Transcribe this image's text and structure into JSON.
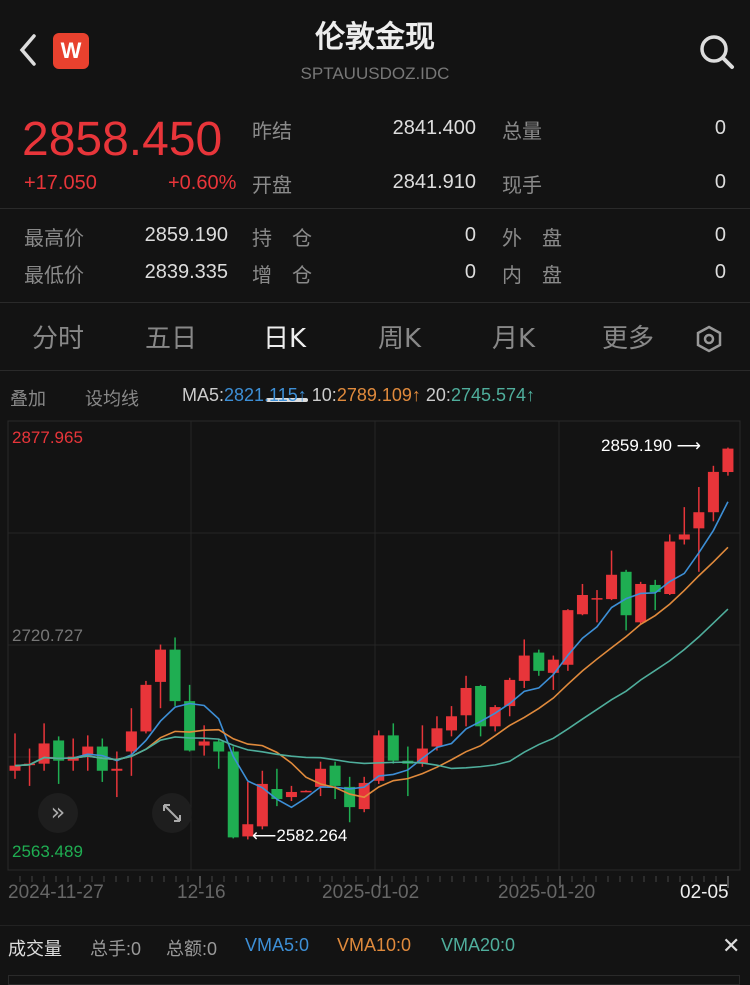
{
  "header": {
    "title": "伦敦金现",
    "symbol": "SPTAUUSDOZ.IDC",
    "logo_letter": "W",
    "back_icon": "chevron-left-icon",
    "search_icon": "search-icon"
  },
  "quote": {
    "price": "2858.450",
    "change": "+17.050",
    "change_pct": "+0.60%",
    "prev_close_label": "昨结",
    "prev_close": "2841.400",
    "open_label": "开盘",
    "open": "2841.910",
    "volume_label": "总量",
    "volume": "0",
    "last_hand_label": "现手",
    "last_hand": "0",
    "high_label": "最高价",
    "high": "2859.190",
    "low_label": "最低价",
    "low": "2839.335",
    "position_label": "持　仓",
    "position": "0",
    "add_position_label": "增　仓",
    "add_position": "0",
    "outer_label": "外　盘",
    "outer": "0",
    "inner_label": "内　盘",
    "inner": "0"
  },
  "tabs": [
    {
      "label": "分时"
    },
    {
      "label": "五日"
    },
    {
      "label": "日K",
      "active": true
    },
    {
      "label": "周K"
    },
    {
      "label": "月K"
    },
    {
      "label": "更多"
    }
  ],
  "toolbar": {
    "overlay": "叠加",
    "set_ma": "设均线",
    "ma5_label": "MA5:",
    "ma5": "2821.115↑",
    "ma10_label": "10:",
    "ma10": "2789.109↑",
    "ma20_label": "20:",
    "ma20": "2745.574↑"
  },
  "colors": {
    "up": "#e8353a",
    "down": "#1fae52",
    "ma5": "#3d8fd6",
    "ma10": "#e08a3c",
    "ma20": "#4fae9c"
  },
  "chart_data": {
    "type": "candlestick",
    "y_max_label": "2877.965",
    "y_mid_label": "2720.727",
    "y_min_label": "2563.489",
    "ylim": [
      2563.489,
      2877.965
    ],
    "high_annotation": "2859.190",
    "low_annotation": "2582.264",
    "x_tick_labels": [
      "2024-11-27",
      "12-16",
      "2025-01-02",
      "2025-01-20",
      "02-05"
    ],
    "ma_periods": [
      5,
      10,
      20
    ],
    "ohlc": [
      [
        2630.8,
        2657.2,
        2625.1,
        2634.4
      ],
      [
        2635.3,
        2646.5,
        2620.1,
        2635.8
      ],
      [
        2635.8,
        2664.3,
        2630.8,
        2650.1
      ],
      [
        2652.2,
        2655.1,
        2621.5,
        2637.9
      ],
      [
        2637.9,
        2653.6,
        2630.8,
        2640.8
      ],
      [
        2641.5,
        2655.8,
        2630.8,
        2647.9
      ],
      [
        2647.9,
        2653.6,
        2622.9,
        2630.8
      ],
      [
        2630.8,
        2644.4,
        2612.2,
        2632.2
      ],
      [
        2644.4,
        2675.0,
        2627.2,
        2658.6
      ],
      [
        2658.6,
        2694.3,
        2657.2,
        2691.5
      ],
      [
        2693.6,
        2720.0,
        2675.0,
        2716.4
      ],
      [
        2716.4,
        2725.0,
        2676.5,
        2680.0
      ],
      [
        2680.0,
        2691.5,
        2644.4,
        2645.1
      ],
      [
        2648.6,
        2662.9,
        2641.5,
        2651.5
      ],
      [
        2651.5,
        2653.6,
        2632.2,
        2644.4
      ],
      [
        2644.4,
        2647.9,
        2583.0,
        2583.7
      ],
      [
        2584.4,
        2622.9,
        2582.264,
        2593.0
      ],
      [
        2591.5,
        2630.8,
        2589.4,
        2621.5
      ],
      [
        2617.9,
        2632.2,
        2605.8,
        2610.8
      ],
      [
        2612.2,
        2620.1,
        2609.4,
        2615.8
      ],
      [
        2616.5,
        2617.0,
        2615.8,
        2616.6
      ],
      [
        2619.4,
        2637.2,
        2612.9,
        2632.2
      ],
      [
        2634.4,
        2637.2,
        2610.8,
        2620.1
      ],
      [
        2619.4,
        2626.5,
        2594.4,
        2605.1
      ],
      [
        2603.7,
        2626.5,
        2601.5,
        2622.2
      ],
      [
        2623.7,
        2659.3,
        2621.5,
        2655.8
      ],
      [
        2655.8,
        2664.3,
        2635.8,
        2637.9
      ],
      [
        2637.9,
        2647.9,
        2612.9,
        2635.8
      ],
      [
        2635.8,
        2662.9,
        2633.6,
        2646.5
      ],
      [
        2647.9,
        2669.3,
        2645.1,
        2660.8
      ],
      [
        2659.3,
        2676.5,
        2655.1,
        2669.3
      ],
      [
        2670.0,
        2697.9,
        2662.2,
        2689.3
      ],
      [
        2690.7,
        2691.5,
        2655.1,
        2662.2
      ],
      [
        2662.2,
        2677.2,
        2658.6,
        2675.8
      ],
      [
        2676.5,
        2696.5,
        2669.3,
        2695.0
      ],
      [
        2694.3,
        2723.6,
        2689.3,
        2712.2
      ],
      [
        2714.3,
        2716.4,
        2697.9,
        2701.4
      ],
      [
        2700.0,
        2712.2,
        2687.9,
        2709.3
      ],
      [
        2705.7,
        2745.0,
        2701.4,
        2744.3
      ],
      [
        2741.4,
        2762.8,
        2740.7,
        2755.0
      ],
      [
        2752.1,
        2758.5,
        2735.7,
        2752.8
      ],
      [
        2752.1,
        2786.4,
        2751.4,
        2769.3
      ],
      [
        2771.4,
        2772.8,
        2730.0,
        2740.7
      ],
      [
        2735.7,
        2764.3,
        2734.3,
        2762.8
      ],
      [
        2762.1,
        2765.7,
        2744.3,
        2757.1
      ],
      [
        2755.7,
        2797.8,
        2755.0,
        2792.8
      ],
      [
        2794.2,
        2817.1,
        2790.7,
        2797.8
      ],
      [
        2802.1,
        2831.3,
        2771.4,
        2813.5
      ],
      [
        2813.5,
        2846.3,
        2807.1,
        2842.0
      ],
      [
        2841.91,
        2859.19,
        2839.335,
        2858.45
      ]
    ]
  },
  "volume_bar": {
    "title": "成交量",
    "total_hands": "总手:0",
    "total_amount": "总额:0",
    "vma5": "VMA5:0",
    "vma10": "VMA10:0",
    "vma20": "VMA20:0"
  }
}
